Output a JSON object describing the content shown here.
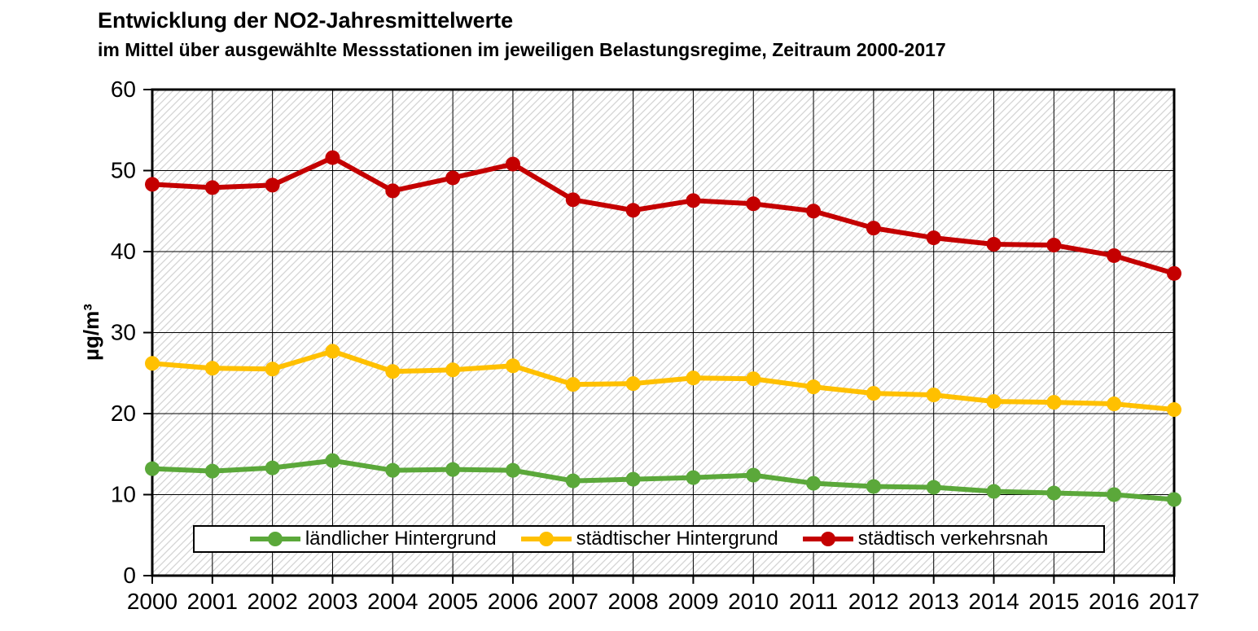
{
  "title": "Entwicklung der NO2-Jahresmittelwerte",
  "subtitle": "im Mittel über ausgewählte Messstationen im jeweiligen Belastungsregime, Zeitraum 2000-2017",
  "chart_data": {
    "type": "line",
    "x": [
      2000,
      2001,
      2002,
      2003,
      2004,
      2005,
      2006,
      2007,
      2008,
      2009,
      2010,
      2011,
      2012,
      2013,
      2014,
      2015,
      2016,
      2017
    ],
    "series": [
      {
        "name": "ländlicher Hintergrund",
        "color": "#5BA83A",
        "values": [
          13.2,
          12.9,
          13.3,
          14.2,
          13.0,
          13.1,
          13.0,
          11.7,
          11.9,
          12.1,
          12.4,
          11.4,
          11.0,
          10.9,
          10.4,
          10.2,
          10.0,
          9.4
        ]
      },
      {
        "name": "städtischer Hintergrund",
        "color": "#FFC000",
        "values": [
          26.2,
          25.6,
          25.5,
          27.7,
          25.2,
          25.4,
          25.9,
          23.6,
          23.7,
          24.4,
          24.3,
          23.3,
          22.5,
          22.3,
          21.5,
          21.4,
          21.2,
          20.5
        ]
      },
      {
        "name": "städtisch verkehrsnah",
        "color": "#C40000",
        "values": [
          48.3,
          47.9,
          48.2,
          51.6,
          47.5,
          49.1,
          50.8,
          46.4,
          45.1,
          46.3,
          45.9,
          45.0,
          42.9,
          41.7,
          40.9,
          40.8,
          39.5,
          37.3
        ]
      }
    ],
    "ylabel": "µg/m³",
    "xlabel": "",
    "ylim": [
      0,
      60
    ],
    "yticks": [
      0,
      10,
      20,
      30,
      40,
      50,
      60
    ],
    "grid": true,
    "plot_background": "diagonal-hatch",
    "legend_position": "bottom-inside",
    "colors": {
      "gridline": "#000000",
      "border": "#000000",
      "hatch": "#d4d4d4",
      "background": "#ffffff"
    }
  }
}
